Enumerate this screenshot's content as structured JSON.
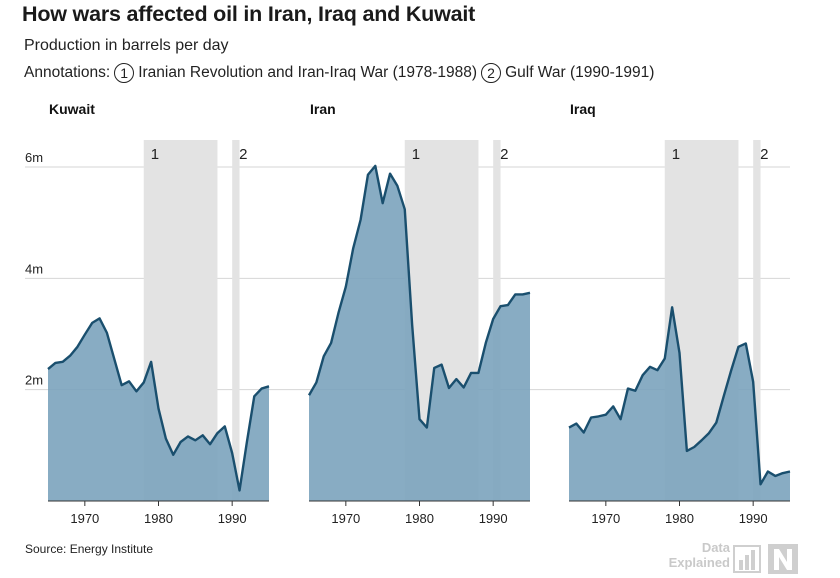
{
  "header": {
    "title": "How wars affected oil in Iran, Iraq and Kuwait",
    "subtitle": "Production in barrels per day",
    "annotations_label": "Annotations:",
    "annotation_1_num": "1",
    "annotation_1_text": "Iranian Revolution and Iran-Iraq War (1978-1988)",
    "annotation_2_num": "2",
    "annotation_2_text": "Gulf War (1990-1991)"
  },
  "footer": {
    "source": "Source: Energy Institute",
    "logo_line1": "Data",
    "logo_line2": "Explained"
  },
  "colors": {
    "area_fill": "#7ba3bd",
    "line": "#1a4f6e",
    "war_band": "#e3e3e3",
    "grid": "#d6d6d6"
  },
  "chart_data": {
    "type": "area",
    "y_ticks": [
      "6m",
      "4m",
      "2m"
    ],
    "x_ticks": [
      "1970",
      "1980",
      "1990"
    ],
    "xlim": [
      1965,
      1995
    ],
    "ylim": [
      0,
      6000000
    ],
    "war_periods": [
      {
        "label": "1",
        "start": 1978,
        "end": 1988
      },
      {
        "label": "2",
        "start": 1990,
        "end": 1991
      }
    ],
    "x": [
      1965,
      1966,
      1967,
      1968,
      1969,
      1970,
      1971,
      1972,
      1973,
      1974,
      1975,
      1976,
      1977,
      1978,
      1979,
      1980,
      1981,
      1982,
      1983,
      1984,
      1985,
      1986,
      1987,
      1988,
      1989,
      1990,
      1991,
      1992,
      1993,
      1994,
      1995
    ],
    "series": [
      {
        "name": "Kuwait",
        "values": [
          2370000,
          2480000,
          2500000,
          2610000,
          2770000,
          2990000,
          3200000,
          3280000,
          3020000,
          2550000,
          2080000,
          2150000,
          1970000,
          2130000,
          2500000,
          1660000,
          1120000,
          830000,
          1060000,
          1160000,
          1090000,
          1180000,
          1020000,
          1220000,
          1340000,
          860000,
          190000,
          1060000,
          1880000,
          2020000,
          2060000
        ]
      },
      {
        "name": "Iran",
        "values": [
          1900000,
          2130000,
          2600000,
          2840000,
          3380000,
          3850000,
          4540000,
          5050000,
          5860000,
          6020000,
          5350000,
          5880000,
          5660000,
          5240000,
          3170000,
          1470000,
          1320000,
          2390000,
          2450000,
          2030000,
          2190000,
          2040000,
          2300000,
          2300000,
          2840000,
          3270000,
          3500000,
          3520000,
          3710000,
          3710000,
          3740000
        ]
      },
      {
        "name": "Iraq",
        "values": [
          1320000,
          1390000,
          1230000,
          1500000,
          1520000,
          1550000,
          1700000,
          1470000,
          2020000,
          1980000,
          2260000,
          2410000,
          2350000,
          2560000,
          3480000,
          2660000,
          900000,
          970000,
          1090000,
          1220000,
          1410000,
          1880000,
          2340000,
          2770000,
          2830000,
          2140000,
          300000,
          530000,
          450000,
          500000,
          530000
        ]
      }
    ]
  }
}
